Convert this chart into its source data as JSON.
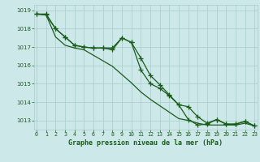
{
  "line1": [
    1018.8,
    1018.8,
    1018.0,
    1017.55,
    1017.1,
    1017.0,
    1016.95,
    1016.95,
    1016.95,
    1017.5,
    1017.25,
    1016.4,
    1015.45,
    1014.95,
    1014.4,
    1013.85,
    1013.05,
    1012.75,
    1012.8,
    1013.05,
    1012.8,
    1012.8,
    1012.95,
    1012.7
  ],
  "line2": [
    1018.8,
    1018.75,
    1017.55,
    1017.1,
    1016.95,
    1016.85,
    1016.55,
    1016.25,
    1015.95,
    1015.5,
    1015.05,
    1014.55,
    1014.15,
    1013.8,
    1013.45,
    1013.1,
    1013.0,
    1012.85,
    1012.75,
    1012.75,
    1012.75,
    1012.75,
    1012.85,
    1012.7
  ],
  "line3": [
    1018.8,
    1018.75,
    1018.0,
    1017.55,
    1017.1,
    1017.0,
    1016.95,
    1016.95,
    1016.85,
    1017.5,
    1017.25,
    1015.75,
    1015.0,
    1014.75,
    1014.35,
    1013.85,
    1013.75,
    1013.2,
    1012.85,
    1013.05,
    1012.8,
    1012.8,
    1012.95,
    1012.7
  ],
  "x": [
    0,
    1,
    2,
    3,
    4,
    5,
    6,
    7,
    8,
    9,
    10,
    11,
    12,
    13,
    14,
    15,
    16,
    17,
    18,
    19,
    20,
    21,
    22,
    23
  ],
  "ylim": [
    1012.5,
    1019.3
  ],
  "yticks": [
    1013,
    1014,
    1015,
    1016,
    1017,
    1018,
    1019
  ],
  "xticks": [
    0,
    1,
    2,
    3,
    4,
    5,
    6,
    7,
    8,
    9,
    10,
    11,
    12,
    13,
    14,
    15,
    16,
    17,
    18,
    19,
    20,
    21,
    22,
    23
  ],
  "line_color": "#1a5c1a",
  "bg_color": "#cce8e8",
  "grid_color": "#aacccc",
  "xlabel": "Graphe pression niveau de la mer (hPa)",
  "xlabel_color": "#1a5c1a",
  "tick_color": "#1a5c1a",
  "marker": "+",
  "markersize": 4,
  "linewidth": 0.9,
  "fig_bg": "#cce8e8"
}
